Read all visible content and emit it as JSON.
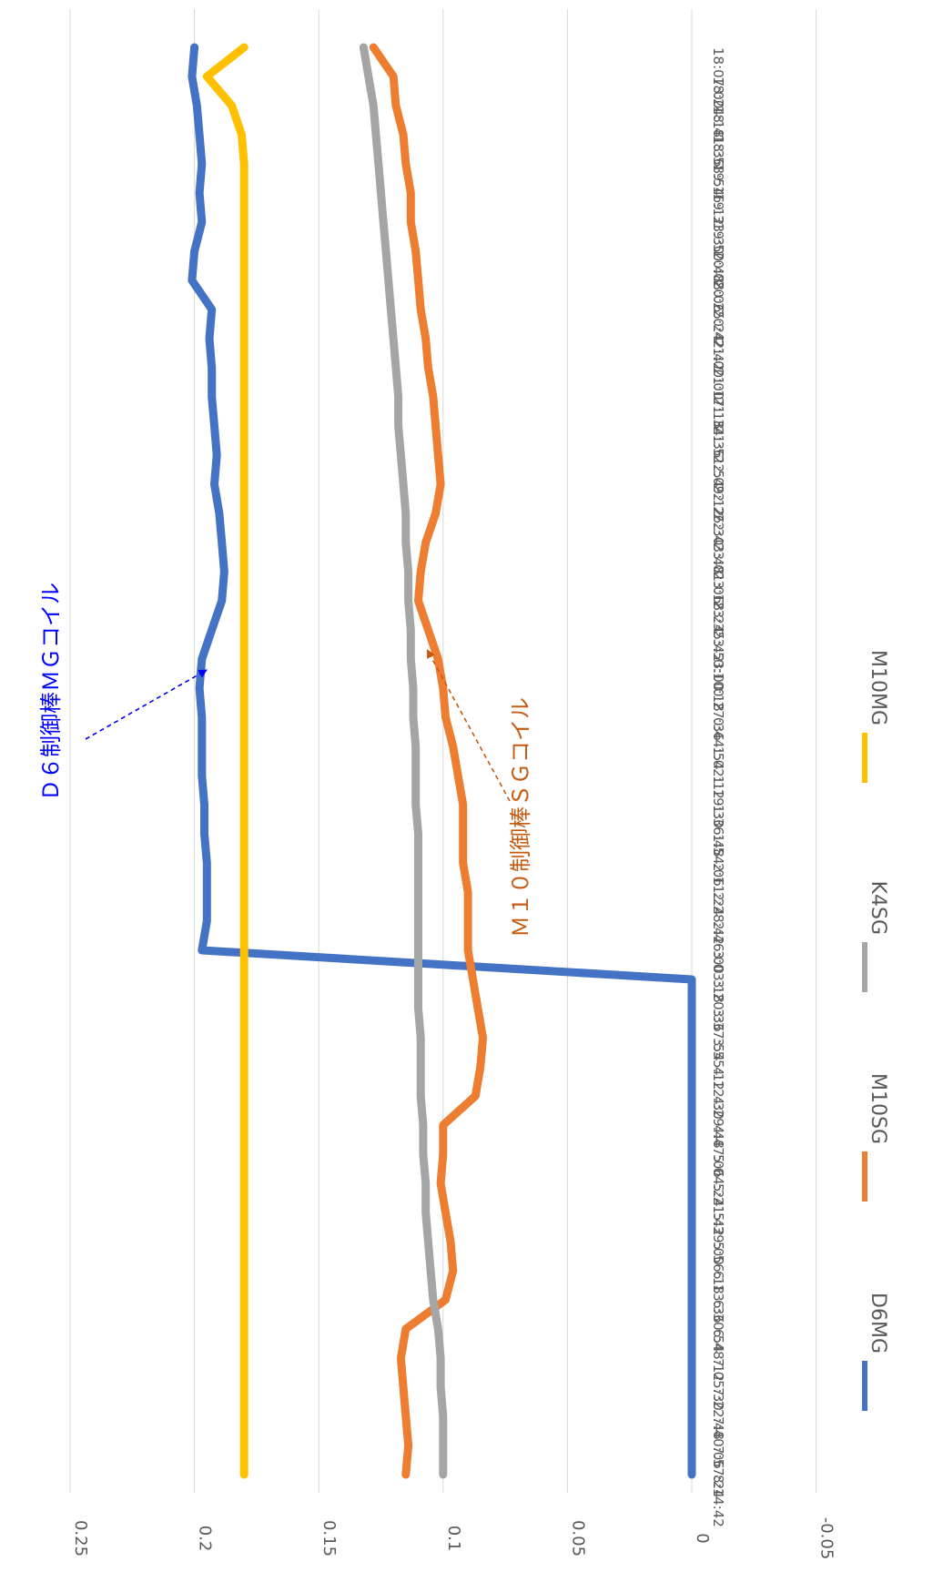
{
  "chart_data": {
    "type": "line",
    "orientation": "rotated 90 degrees clockwise",
    "ylim": [
      -0.05,
      0.25
    ],
    "yticks": [
      "-0.05",
      "0",
      "0.05",
      "0.1",
      "0.15",
      "0.2",
      "0.25"
    ],
    "x_tick_labels": [
      "18:07:00",
      "18:24:18",
      "18:41:36",
      "18:58:54",
      "19:16:12",
      "19:33:30",
      "19:50:48",
      "20:08:06",
      "20:25:24",
      "20:42:42",
      "21:00:00",
      "21:17:18",
      "21:34:36",
      "21:51:54",
      "22:09:12",
      "22:26:30",
      "22:43:48",
      "23:01:06",
      "23:18:24",
      "23:35:42",
      "23:53:00",
      "0:10:18",
      "0:27:36",
      "0:44:54",
      "1:02:12",
      "1:19:30",
      "1:36:48",
      "1:54:06",
      "2:11:24",
      "2:28:42",
      "2:46:00",
      "3:03:18",
      "3:20:36",
      "3:37:54",
      "3:55:12",
      "4:12:30",
      "4:29:48",
      "4:47:06",
      "5:04:24",
      "5:21:42",
      "5:39:00",
      "5:56:18",
      "6:13:36",
      "6:30:54",
      "6:48:12",
      "7:05:30",
      "7:22:48",
      "7:40:06",
      "7:57:24",
      "8:14:42"
    ],
    "grid": true,
    "legend_position": "bottom",
    "series": [
      {
        "name": "D6MG",
        "color": "#4472C4",
        "values": [
          0.2,
          0.201,
          0.199,
          0.198,
          0.197,
          0.198,
          0.197,
          0.2,
          0.201,
          0.193,
          0.194,
          0.193,
          0.193,
          0.192,
          0.191,
          0.192,
          0.19,
          0.189,
          0.188,
          0.189,
          0.193,
          0.197,
          0.198,
          0.197,
          0.197,
          0.197,
          0.196,
          0.196,
          0.195,
          0.195,
          0.195,
          0.197,
          0.0,
          0.0,
          0.0,
          0.0,
          0.0,
          0.0,
          0.0,
          0.0,
          0.0,
          0.0,
          0.0,
          0.0,
          0.0,
          0.0,
          0.0,
          0.0,
          0.0,
          0.0
        ]
      },
      {
        "name": "M10SG",
        "color": "#ED7D31",
        "values": [
          0.128,
          0.12,
          0.119,
          0.116,
          0.115,
          0.113,
          0.113,
          0.111,
          0.11,
          0.109,
          0.107,
          0.106,
          0.104,
          0.103,
          0.102,
          0.101,
          0.103,
          0.107,
          0.109,
          0.11,
          0.106,
          0.102,
          0.1,
          0.099,
          0.096,
          0.094,
          0.092,
          0.092,
          0.092,
          0.09,
          0.09,
          0.09,
          0.088,
          0.086,
          0.084,
          0.085,
          0.087,
          0.1,
          0.1,
          0.101,
          0.099,
          0.097,
          0.096,
          0.099,
          0.115,
          0.117,
          0.116,
          0.115,
          0.114,
          0.115
        ]
      },
      {
        "name": "K4SG",
        "color": "#A5A5A5",
        "values": [
          0.132,
          0.13,
          0.128,
          0.127,
          0.126,
          0.125,
          0.124,
          0.123,
          0.122,
          0.121,
          0.12,
          0.119,
          0.118,
          0.118,
          0.117,
          0.116,
          0.115,
          0.115,
          0.114,
          0.114,
          0.113,
          0.113,
          0.112,
          0.112,
          0.111,
          0.111,
          0.111,
          0.11,
          0.11,
          0.11,
          0.11,
          0.11,
          0.11,
          0.11,
          0.109,
          0.109,
          0.109,
          0.108,
          0.108,
          0.107,
          0.107,
          0.106,
          0.105,
          0.104,
          0.102,
          0.101,
          0.101,
          0.1,
          0.1,
          0.1
        ]
      },
      {
        "name": "M10MG",
        "color": "#FFC000",
        "values": [
          0.18,
          0.195,
          0.185,
          0.181,
          0.18,
          0.18,
          0.18,
          0.18,
          0.18,
          0.18,
          0.18,
          0.18,
          0.18,
          0.18,
          0.18,
          0.18,
          0.18,
          0.18,
          0.18,
          0.18,
          0.18,
          0.18,
          0.18,
          0.18,
          0.18,
          0.18,
          0.18,
          0.18,
          0.18,
          0.18,
          0.18,
          0.18,
          0.18,
          0.18,
          0.18,
          0.18,
          0.18,
          0.18,
          0.18,
          0.18,
          0.18,
          0.18,
          0.18,
          0.18,
          0.18,
          0.18,
          0.18,
          0.18,
          0.18,
          0.18
        ]
      }
    ]
  },
  "annotations": [
    {
      "text": "Ｄ６制御棒ＭＧコイル",
      "color": "#0000FF",
      "target_series": "D6MG",
      "target_index": 22
    },
    {
      "text": "Ｍ１０制御棒ＳＧコイル",
      "color": "#C55A11",
      "target_series": "M10SG",
      "target_index": 21
    }
  ]
}
